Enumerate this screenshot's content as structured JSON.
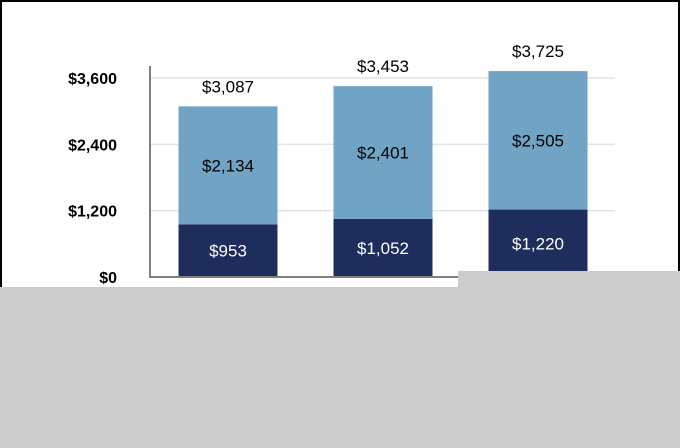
{
  "chart_data": {
    "type": "bar",
    "stacked": true,
    "categories": [
      "",
      "",
      ""
    ],
    "series": [
      {
        "values": [
          953,
          1052,
          1220
        ],
        "labels": [
          "$953",
          "$1,052",
          "$1,220"
        ],
        "color": "#1f2d5c",
        "label_color": "#ffffff"
      },
      {
        "values": [
          2134,
          2401,
          2505
        ],
        "labels": [
          "$2,134",
          "$2,401",
          "$2,505"
        ],
        "color": "#71a3c4",
        "label_color": "#000000"
      }
    ],
    "totals": [
      3087,
      3453,
      3725
    ],
    "total_labels": [
      "$3,087",
      "$3,453",
      "$3,725"
    ],
    "yticks": [
      0,
      1200,
      2400,
      3600
    ],
    "ytick_labels": [
      "$0",
      "$1,200",
      "$2,400",
      "$3,600"
    ],
    "ylim": [
      0,
      3800
    ],
    "grid": true,
    "title": "",
    "xlabel": "",
    "ylabel": ""
  },
  "colors": {
    "background": "#ffffff",
    "frame": "#000000",
    "gridline": "#e3e3e3",
    "axis": "#7f7f7f",
    "overlay": "#cccccd"
  }
}
